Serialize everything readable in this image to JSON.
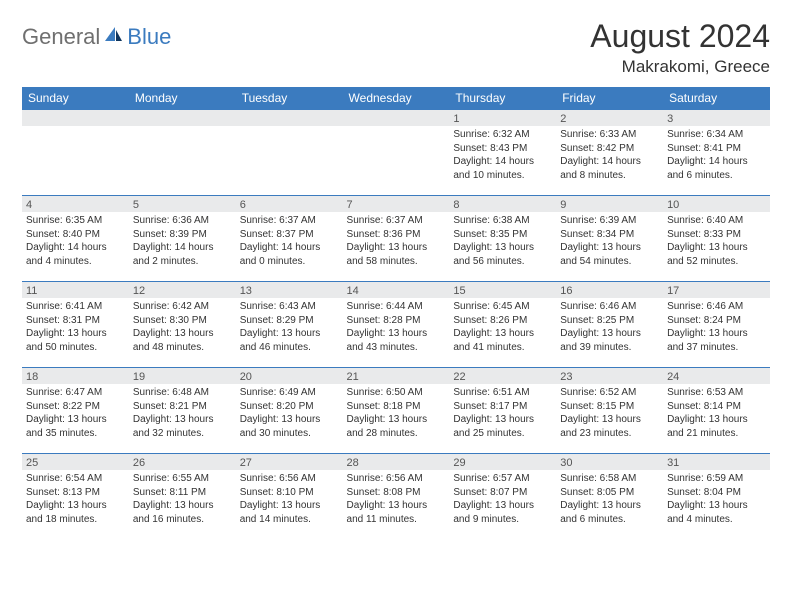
{
  "brand": {
    "part1": "General",
    "part2": "Blue"
  },
  "title": "August 2024",
  "location": "Makrakomi, Greece",
  "theme": {
    "header_bg": "#3b7bbf",
    "header_fg": "#ffffff",
    "row_border": "#3b7bbf",
    "daynum_bg": "#e9eaeb",
    "text_color": "#333333"
  },
  "weekdays": [
    "Sunday",
    "Monday",
    "Tuesday",
    "Wednesday",
    "Thursday",
    "Friday",
    "Saturday"
  ],
  "weeks": [
    [
      {
        "n": "",
        "sr": "",
        "ss": "",
        "d1": "",
        "d2": ""
      },
      {
        "n": "",
        "sr": "",
        "ss": "",
        "d1": "",
        "d2": ""
      },
      {
        "n": "",
        "sr": "",
        "ss": "",
        "d1": "",
        "d2": ""
      },
      {
        "n": "",
        "sr": "",
        "ss": "",
        "d1": "",
        "d2": ""
      },
      {
        "n": "1",
        "sr": "Sunrise: 6:32 AM",
        "ss": "Sunset: 8:43 PM",
        "d1": "Daylight: 14 hours",
        "d2": "and 10 minutes."
      },
      {
        "n": "2",
        "sr": "Sunrise: 6:33 AM",
        "ss": "Sunset: 8:42 PM",
        "d1": "Daylight: 14 hours",
        "d2": "and 8 minutes."
      },
      {
        "n": "3",
        "sr": "Sunrise: 6:34 AM",
        "ss": "Sunset: 8:41 PM",
        "d1": "Daylight: 14 hours",
        "d2": "and 6 minutes."
      }
    ],
    [
      {
        "n": "4",
        "sr": "Sunrise: 6:35 AM",
        "ss": "Sunset: 8:40 PM",
        "d1": "Daylight: 14 hours",
        "d2": "and 4 minutes."
      },
      {
        "n": "5",
        "sr": "Sunrise: 6:36 AM",
        "ss": "Sunset: 8:39 PM",
        "d1": "Daylight: 14 hours",
        "d2": "and 2 minutes."
      },
      {
        "n": "6",
        "sr": "Sunrise: 6:37 AM",
        "ss": "Sunset: 8:37 PM",
        "d1": "Daylight: 14 hours",
        "d2": "and 0 minutes."
      },
      {
        "n": "7",
        "sr": "Sunrise: 6:37 AM",
        "ss": "Sunset: 8:36 PM",
        "d1": "Daylight: 13 hours",
        "d2": "and 58 minutes."
      },
      {
        "n": "8",
        "sr": "Sunrise: 6:38 AM",
        "ss": "Sunset: 8:35 PM",
        "d1": "Daylight: 13 hours",
        "d2": "and 56 minutes."
      },
      {
        "n": "9",
        "sr": "Sunrise: 6:39 AM",
        "ss": "Sunset: 8:34 PM",
        "d1": "Daylight: 13 hours",
        "d2": "and 54 minutes."
      },
      {
        "n": "10",
        "sr": "Sunrise: 6:40 AM",
        "ss": "Sunset: 8:33 PM",
        "d1": "Daylight: 13 hours",
        "d2": "and 52 minutes."
      }
    ],
    [
      {
        "n": "11",
        "sr": "Sunrise: 6:41 AM",
        "ss": "Sunset: 8:31 PM",
        "d1": "Daylight: 13 hours",
        "d2": "and 50 minutes."
      },
      {
        "n": "12",
        "sr": "Sunrise: 6:42 AM",
        "ss": "Sunset: 8:30 PM",
        "d1": "Daylight: 13 hours",
        "d2": "and 48 minutes."
      },
      {
        "n": "13",
        "sr": "Sunrise: 6:43 AM",
        "ss": "Sunset: 8:29 PM",
        "d1": "Daylight: 13 hours",
        "d2": "and 46 minutes."
      },
      {
        "n": "14",
        "sr": "Sunrise: 6:44 AM",
        "ss": "Sunset: 8:28 PM",
        "d1": "Daylight: 13 hours",
        "d2": "and 43 minutes."
      },
      {
        "n": "15",
        "sr": "Sunrise: 6:45 AM",
        "ss": "Sunset: 8:26 PM",
        "d1": "Daylight: 13 hours",
        "d2": "and 41 minutes."
      },
      {
        "n": "16",
        "sr": "Sunrise: 6:46 AM",
        "ss": "Sunset: 8:25 PM",
        "d1": "Daylight: 13 hours",
        "d2": "and 39 minutes."
      },
      {
        "n": "17",
        "sr": "Sunrise: 6:46 AM",
        "ss": "Sunset: 8:24 PM",
        "d1": "Daylight: 13 hours",
        "d2": "and 37 minutes."
      }
    ],
    [
      {
        "n": "18",
        "sr": "Sunrise: 6:47 AM",
        "ss": "Sunset: 8:22 PM",
        "d1": "Daylight: 13 hours",
        "d2": "and 35 minutes."
      },
      {
        "n": "19",
        "sr": "Sunrise: 6:48 AM",
        "ss": "Sunset: 8:21 PM",
        "d1": "Daylight: 13 hours",
        "d2": "and 32 minutes."
      },
      {
        "n": "20",
        "sr": "Sunrise: 6:49 AM",
        "ss": "Sunset: 8:20 PM",
        "d1": "Daylight: 13 hours",
        "d2": "and 30 minutes."
      },
      {
        "n": "21",
        "sr": "Sunrise: 6:50 AM",
        "ss": "Sunset: 8:18 PM",
        "d1": "Daylight: 13 hours",
        "d2": "and 28 minutes."
      },
      {
        "n": "22",
        "sr": "Sunrise: 6:51 AM",
        "ss": "Sunset: 8:17 PM",
        "d1": "Daylight: 13 hours",
        "d2": "and 25 minutes."
      },
      {
        "n": "23",
        "sr": "Sunrise: 6:52 AM",
        "ss": "Sunset: 8:15 PM",
        "d1": "Daylight: 13 hours",
        "d2": "and 23 minutes."
      },
      {
        "n": "24",
        "sr": "Sunrise: 6:53 AM",
        "ss": "Sunset: 8:14 PM",
        "d1": "Daylight: 13 hours",
        "d2": "and 21 minutes."
      }
    ],
    [
      {
        "n": "25",
        "sr": "Sunrise: 6:54 AM",
        "ss": "Sunset: 8:13 PM",
        "d1": "Daylight: 13 hours",
        "d2": "and 18 minutes."
      },
      {
        "n": "26",
        "sr": "Sunrise: 6:55 AM",
        "ss": "Sunset: 8:11 PM",
        "d1": "Daylight: 13 hours",
        "d2": "and 16 minutes."
      },
      {
        "n": "27",
        "sr": "Sunrise: 6:56 AM",
        "ss": "Sunset: 8:10 PM",
        "d1": "Daylight: 13 hours",
        "d2": "and 14 minutes."
      },
      {
        "n": "28",
        "sr": "Sunrise: 6:56 AM",
        "ss": "Sunset: 8:08 PM",
        "d1": "Daylight: 13 hours",
        "d2": "and 11 minutes."
      },
      {
        "n": "29",
        "sr": "Sunrise: 6:57 AM",
        "ss": "Sunset: 8:07 PM",
        "d1": "Daylight: 13 hours",
        "d2": "and 9 minutes."
      },
      {
        "n": "30",
        "sr": "Sunrise: 6:58 AM",
        "ss": "Sunset: 8:05 PM",
        "d1": "Daylight: 13 hours",
        "d2": "and 6 minutes."
      },
      {
        "n": "31",
        "sr": "Sunrise: 6:59 AM",
        "ss": "Sunset: 8:04 PM",
        "d1": "Daylight: 13 hours",
        "d2": "and 4 minutes."
      }
    ]
  ]
}
